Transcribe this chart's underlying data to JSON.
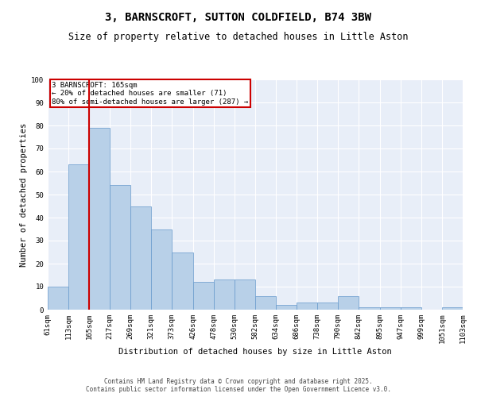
{
  "title_line1": "3, BARNSCROFT, SUTTON COLDFIELD, B74 3BW",
  "title_line2": "Size of property relative to detached houses in Little Aston",
  "xlabel": "Distribution of detached houses by size in Little Aston",
  "ylabel": "Number of detached properties",
  "bar_color": "#b8d0e8",
  "bar_edge_color": "#6699cc",
  "marker_value": 165,
  "marker_color": "#cc0000",
  "annotation_title": "3 BARNSCROFT: 165sqm",
  "annotation_line1": "← 20% of detached houses are smaller (71)",
  "annotation_line2": "80% of semi-detached houses are larger (287) →",
  "annotation_box_color": "#cc0000",
  "bins": [
    61,
    113,
    165,
    217,
    269,
    321,
    373,
    426,
    478,
    530,
    582,
    634,
    686,
    738,
    790,
    842,
    895,
    947,
    999,
    1051,
    1103
  ],
  "counts": [
    10,
    63,
    79,
    54,
    45,
    35,
    25,
    12,
    13,
    13,
    6,
    2,
    3,
    3,
    6,
    1,
    1,
    1,
    0,
    1
  ],
  "ylim": [
    0,
    100
  ],
  "yticks": [
    0,
    10,
    20,
    30,
    40,
    50,
    60,
    70,
    80,
    90,
    100
  ],
  "background_color": "#e8eef8",
  "footer_text": "Contains HM Land Registry data © Crown copyright and database right 2025.\nContains public sector information licensed under the Open Government Licence v3.0.",
  "title_fontsize": 10,
  "subtitle_fontsize": 8.5,
  "label_fontsize": 7.5,
  "tick_fontsize": 6.5,
  "annotation_fontsize": 6.5,
  "footer_fontsize": 5.5
}
